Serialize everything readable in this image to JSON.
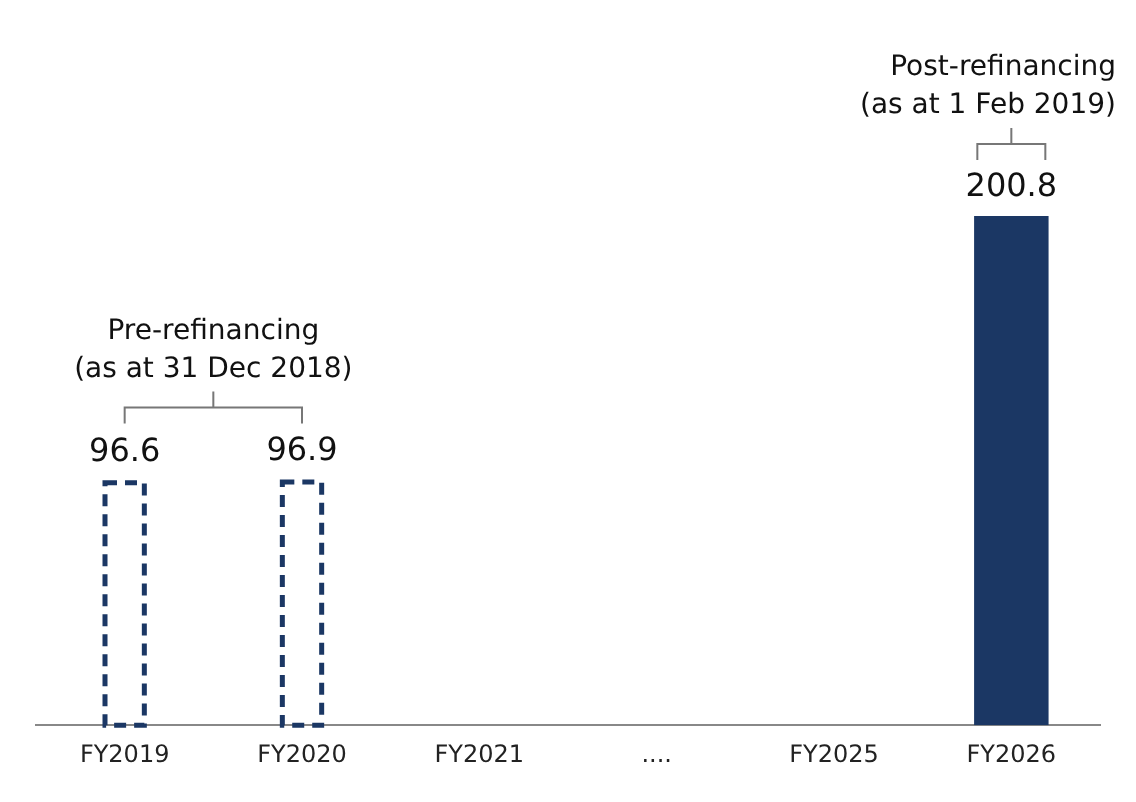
{
  "chart_data": {
    "type": "bar",
    "categories": [
      "FY2019",
      "FY2020",
      "FY2021",
      "....",
      "FY2025",
      "FY2026"
    ],
    "series": [
      {
        "color": "#1b3764",
        "line_style": "dashed",
        "values": [
          96.6,
          96.9,
          null,
          null,
          null,
          null
        ]
      },
      {
        "color": "#1b3764",
        "line_style": "solid",
        "values": [
          null,
          null,
          null,
          null,
          null,
          200.8
        ]
      }
    ],
    "data_labels": true,
    "grid": false,
    "legend": false,
    "tick_labels": "x",
    "annotations": [
      "Pre-refinancing (as at 31 Dec 2018)",
      "Post-refinancing (as at 1 Feb 2019)"
    ]
  }
}
